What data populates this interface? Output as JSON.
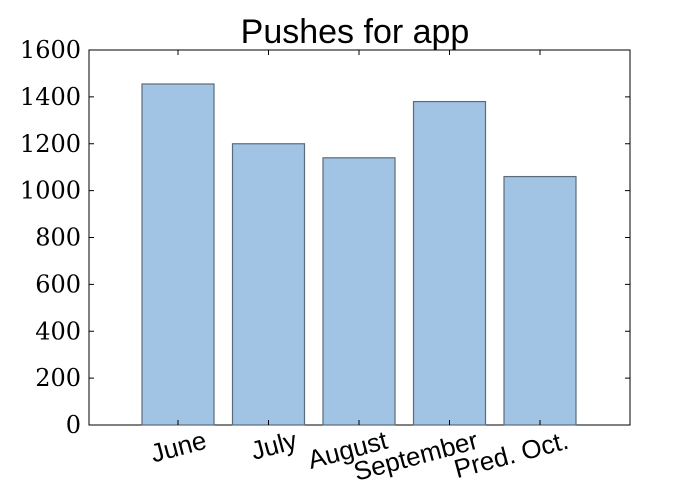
{
  "chart_data": {
    "type": "bar",
    "title": "Pushes for app",
    "xlabel": "",
    "ylabel": "",
    "categories": [
      "June",
      "July",
      "August",
      "September",
      "Pred. Oct."
    ],
    "values": [
      1455,
      1200,
      1140,
      1380,
      1060
    ],
    "ylim": [
      0,
      1600
    ],
    "yticks": [
      0,
      200,
      400,
      600,
      800,
      1000,
      1200,
      1400,
      1600
    ],
    "ytick_labels": [
      "0",
      "200",
      "400",
      "600",
      "800",
      "1000",
      "1200",
      "1400",
      "1600"
    ],
    "grid": false,
    "bar_color": "#a1c3e4",
    "bar_edge_color": "#5a6b7a"
  }
}
